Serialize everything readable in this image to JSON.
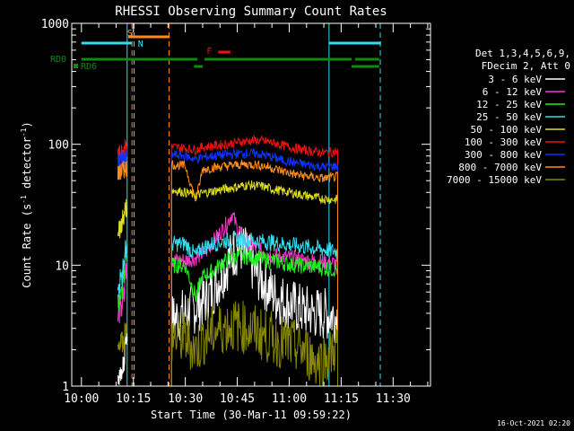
{
  "chart_data": {
    "type": "line",
    "title": "RHESSI Observing Summary Count Rates",
    "xlabel": "Start Time (30-Mar-11 09:59:22)",
    "ylabel_main": "Count Rate (s",
    "ylabel_sup1": "-1",
    "ylabel_mid": " detector",
    "ylabel_sup2": "-1",
    "ylabel_end": ")",
    "y_scale": "log",
    "ylim": [
      1,
      1000
    ],
    "xlim_min": [
      0,
      100
    ],
    "x_tick_labels": [
      "10:00",
      "10:15",
      "10:30",
      "10:45",
      "11:00",
      "11:15",
      "11:30"
    ],
    "x_tick_minutes": [
      0,
      15,
      30,
      45,
      60,
      75,
      90
    ],
    "y_tick_labels": [
      "1",
      "10",
      "100",
      "1000"
    ],
    "y_tick_values": [
      1,
      10,
      100,
      1000
    ],
    "legend_header": [
      "Det 1,3,4,5,6,9,",
      "FDecim 2, Att 0"
    ],
    "legend_position": "right",
    "timestamp": "16-Oct-2021 02:20",
    "flags": [
      {
        "label": "S",
        "color": "#ff8c1a",
        "segments": [
          [
            13.5,
            25.5
          ]
        ]
      },
      {
        "label": "N",
        "color": "#33ddee",
        "segments": [
          [
            0,
            14.5
          ],
          [
            71.5,
            86.5
          ]
        ]
      },
      {
        "label": "F",
        "color": "#ee1111",
        "segments": [
          [
            39.5,
            43
          ]
        ]
      },
      {
        "label": "RD0",
        "color": "#118811",
        "segments": [
          [
            0,
            33.5
          ],
          [
            35.5,
            78
          ],
          [
            79,
            86
          ]
        ]
      },
      {
        "label": "RD6",
        "color": "#118811",
        "segments": [
          [
            32.5,
            35
          ],
          [
            78,
            86
          ]
        ]
      }
    ],
    "vlines": [
      {
        "t": 13.2,
        "color": "#33ddee",
        "dashed": false
      },
      {
        "t": 15.2,
        "color": "#33ddee",
        "dashed": true
      },
      {
        "t": 14.6,
        "color": "#ff8c1a",
        "dashed": true
      },
      {
        "t": 25.3,
        "color": "#ff8c1a",
        "dashed": true
      },
      {
        "t": 71.5,
        "color": "#33ddee",
        "dashed": false
      },
      {
        "t": 86.3,
        "color": "#33ddee",
        "dashed": true
      }
    ],
    "series": [
      {
        "name": "3 - 6 keV",
        "color": "#ffffff",
        "segA": [
          1.2,
          1.3,
          1.5,
          2.5
        ],
        "segB": [
          [
            26,
            3.5
          ],
          [
            30,
            4.0
          ],
          [
            33,
            4.5
          ],
          [
            36,
            5.2
          ],
          [
            39,
            7
          ],
          [
            42,
            10
          ],
          [
            44,
            13
          ],
          [
            46,
            14
          ],
          [
            48,
            12
          ],
          [
            50,
            9
          ],
          [
            53,
            7
          ],
          [
            56,
            5.5
          ],
          [
            60,
            4.8
          ],
          [
            64,
            4.2
          ],
          [
            68,
            4.0
          ],
          [
            72,
            3.9
          ],
          [
            74,
            3.8
          ]
        ]
      },
      {
        "name": "6 - 12 keV",
        "color": "#ff33cc",
        "segA": [
          4,
          4.5,
          6,
          9
        ],
        "segB": [
          [
            26,
            11
          ],
          [
            30,
            11
          ],
          [
            33,
            11.5
          ],
          [
            36,
            13
          ],
          [
            39,
            17
          ],
          [
            42,
            22
          ],
          [
            43.5,
            27
          ],
          [
            45,
            20
          ],
          [
            48,
            15
          ],
          [
            52,
            13
          ],
          [
            56,
            12
          ],
          [
            60,
            11.5
          ],
          [
            64,
            11
          ],
          [
            68,
            10.8
          ],
          [
            72,
            10.5
          ],
          [
            74,
            10.2
          ]
        ]
      },
      {
        "name": "12 - 25 keV",
        "color": "#22ee22",
        "segA": [
          5,
          6,
          8,
          12
        ],
        "segB": [
          [
            26,
            10
          ],
          [
            30,
            10
          ],
          [
            33,
            5.5
          ],
          [
            35,
            8
          ],
          [
            38,
            9
          ],
          [
            42,
            11
          ],
          [
            46,
            12
          ],
          [
            50,
            11.5
          ],
          [
            54,
            11
          ],
          [
            58,
            10.5
          ],
          [
            62,
            10
          ],
          [
            66,
            9.8
          ],
          [
            70,
            9.5
          ],
          [
            74,
            9.2
          ]
        ]
      },
      {
        "name": "25 - 50 keV",
        "color": "#33ddee",
        "segA": [
          6,
          8,
          10,
          14
        ],
        "segB": [
          [
            26,
            15
          ],
          [
            30,
            15
          ],
          [
            33,
            12
          ],
          [
            35,
            14
          ],
          [
            38,
            15
          ],
          [
            42,
            16
          ],
          [
            46,
            16.5
          ],
          [
            50,
            16
          ],
          [
            54,
            15.5
          ],
          [
            58,
            15
          ],
          [
            62,
            14.5
          ],
          [
            66,
            14
          ],
          [
            70,
            13.5
          ],
          [
            74,
            13
          ]
        ]
      },
      {
        "name": "50 - 100 keV",
        "color": "#dddd22",
        "segA": [
          20,
          22,
          25,
          30
        ],
        "segB": [
          [
            26,
            42
          ],
          [
            30,
            40
          ],
          [
            33,
            38
          ],
          [
            36,
            40
          ],
          [
            40,
            42
          ],
          [
            44,
            44
          ],
          [
            48,
            46
          ],
          [
            52,
            45
          ],
          [
            56,
            42
          ],
          [
            60,
            40
          ],
          [
            64,
            38
          ],
          [
            68,
            36
          ],
          [
            72,
            35
          ],
          [
            74,
            35
          ]
        ]
      },
      {
        "name": "100 - 300 keV",
        "color": "#ee1111",
        "segA": [
          85,
          88,
          90,
          95
        ],
        "segB": [
          [
            26,
            95
          ],
          [
            30,
            93
          ],
          [
            33,
            90
          ],
          [
            35,
            95
          ],
          [
            38,
            97
          ],
          [
            42,
            100
          ],
          [
            46,
            105
          ],
          [
            50,
            108
          ],
          [
            54,
            105
          ],
          [
            58,
            98
          ],
          [
            62,
            92
          ],
          [
            66,
            88
          ],
          [
            70,
            85
          ],
          [
            74,
            87
          ]
        ]
      },
      {
        "name": "300 - 800 keV",
        "color": "#1133ff",
        "segA": [
          72,
          74,
          75,
          78
        ],
        "segB": [
          [
            26,
            82
          ],
          [
            30,
            80
          ],
          [
            33,
            75
          ],
          [
            35,
            78
          ],
          [
            38,
            80
          ],
          [
            42,
            82
          ],
          [
            46,
            84
          ],
          [
            50,
            84
          ],
          [
            54,
            80
          ],
          [
            58,
            74
          ],
          [
            62,
            70
          ],
          [
            66,
            67
          ],
          [
            70,
            65
          ],
          [
            74,
            66
          ]
        ]
      },
      {
        "name": "800 - 7000 keV",
        "color": "#ff8c1a",
        "segA": [
          58,
          60,
          62,
          65
        ],
        "segB": [
          [
            26,
            68
          ],
          [
            30,
            66
          ],
          [
            33,
            34
          ],
          [
            35,
            62
          ],
          [
            38,
            64
          ],
          [
            42,
            66
          ],
          [
            46,
            68
          ],
          [
            50,
            68
          ],
          [
            54,
            65
          ],
          [
            58,
            60
          ],
          [
            62,
            56
          ],
          [
            66,
            54
          ],
          [
            70,
            52
          ],
          [
            74,
            54
          ]
        ]
      },
      {
        "name": "7000 - 15000 keV",
        "color": "#888800",
        "segA": [
          2.0,
          2.5,
          2.3,
          3.0
        ],
        "segB": [
          [
            26,
            2.5
          ],
          [
            30,
            2.5
          ],
          [
            33,
            2.0
          ],
          [
            36,
            2.6
          ],
          [
            40,
            3.0
          ],
          [
            44,
            3.2
          ],
          [
            48,
            3.0
          ],
          [
            52,
            2.7
          ],
          [
            56,
            2.4
          ],
          [
            60,
            2.2
          ],
          [
            64,
            2.0
          ],
          [
            68,
            1.6
          ],
          [
            72,
            1.8
          ],
          [
            74,
            2.4
          ]
        ]
      }
    ]
  }
}
